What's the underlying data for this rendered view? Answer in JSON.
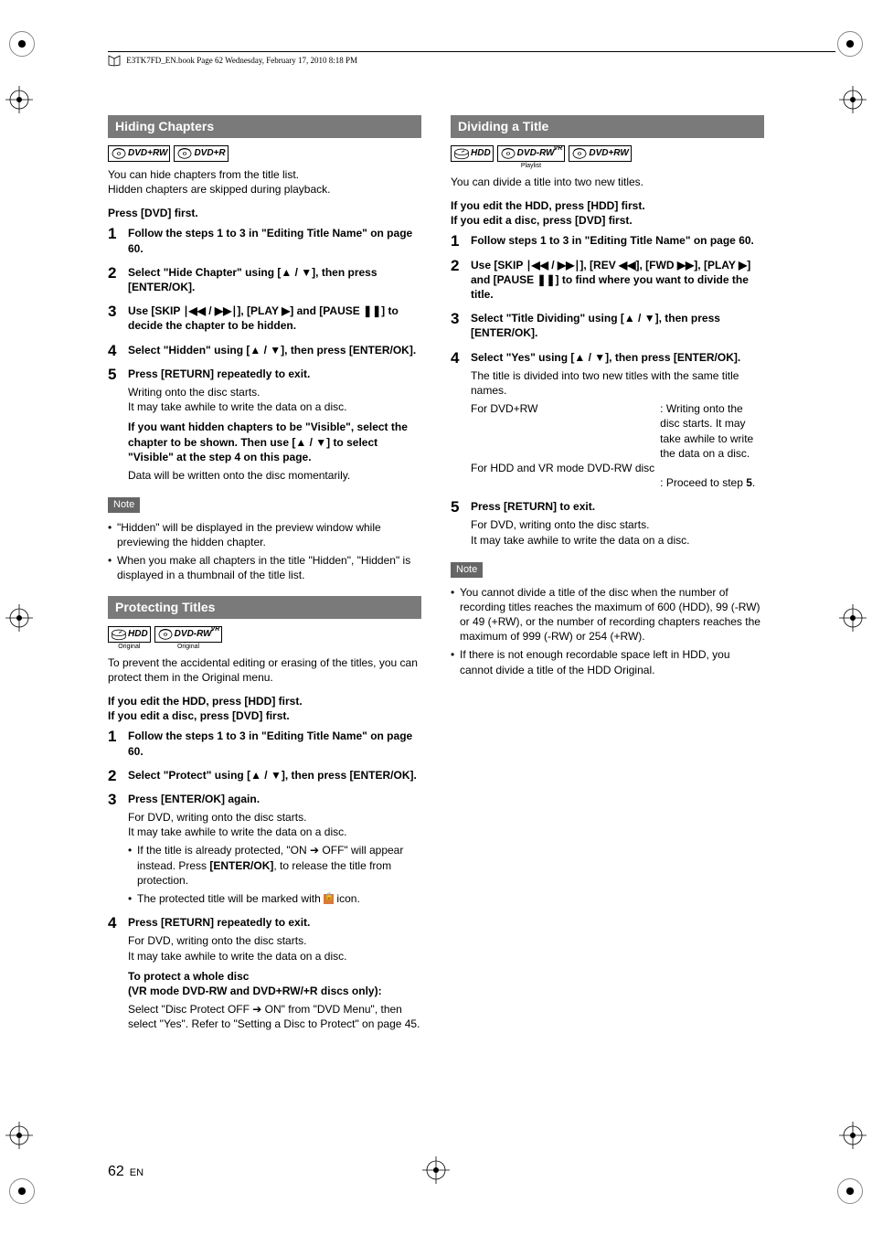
{
  "header_text": "E3TK7FD_EN.book  Page 62  Wednesday, February 17, 2010  8:18 PM",
  "page_number": "62",
  "page_lang": "EN",
  "symbols": {
    "up": "▲",
    "down": "▼",
    "play": "▶",
    "pause": "❚❚",
    "skip_prev": "∣◀◀",
    "skip_next": "▶▶∣",
    "rev": "◀◀",
    "fwd": "▶▶",
    "right_arrow": "➔"
  },
  "left": {
    "sec1": {
      "title": "Hiding Chapters",
      "discs": [
        {
          "type": "disc",
          "label": "DVD+RW"
        },
        {
          "type": "disc",
          "label": "DVD+R"
        }
      ],
      "intro1": "You can hide chapters from the title list.",
      "intro2": "Hidden chapters are skipped during playback.",
      "pre": "Press [DVD] first.",
      "steps": [
        {
          "main": "Follow the steps 1 to 3 in \"Editing Title Name\" on page 60."
        },
        {
          "main": "Select \"Hide Chapter\" using [▲ / ▼], then press [ENTER/OK]."
        },
        {
          "main": "Use [SKIP ∣◀◀ / ▶▶∣], [PLAY ▶] and [PAUSE ❚❚] to decide the chapter to be hidden."
        },
        {
          "main": "Select \"Hidden\" using [▲ / ▼], then press [ENTER/OK]."
        },
        {
          "main": "Press [RETURN] repeatedly to exit.",
          "sub": [
            "Writing onto the disc starts.",
            "It may take awhile to write the data on a disc."
          ],
          "subbold": "If you want hidden chapters to be \"Visible\", select the chapter to be shown. Then use [▲ / ▼] to select \"Visible\" at the step 4 on this page.",
          "subafter": "Data will be written onto the disc momentarily."
        }
      ],
      "note_label": "Note",
      "notes": [
        "\"Hidden\" will be displayed in the preview window while previewing the hidden chapter.",
        "When you make all chapters in the title \"Hidden\", \"Hidden\" is displayed in a thumbnail of the title list."
      ]
    },
    "sec2": {
      "title": "Protecting Titles",
      "discs": [
        {
          "type": "hdd",
          "label": "HDD",
          "sub": "Original"
        },
        {
          "type": "disc",
          "label": "DVD-RW",
          "sup": "VR",
          "sub": "Original"
        }
      ],
      "intro": "To prevent the accidental editing or erasing of the titles, you can protect them in the Original menu.",
      "pre1": "If you edit the HDD, press [HDD] first.",
      "pre2": "If you edit a disc, press [DVD] first.",
      "steps": [
        {
          "main": "Follow the steps 1 to 3 in \"Editing Title Name\" on page 60."
        },
        {
          "main": "Select \"Protect\" using [▲ / ▼], then press [ENTER/OK]."
        },
        {
          "main": "Press [ENTER/OK] again.",
          "sub": [
            "For DVD, writing onto the disc starts.",
            "It may take awhile to write the data on a disc."
          ],
          "bullets": [
            "If the title is already protected, \"ON ➔ OFF\" will appear instead. Press [ENTER/OK], to release the title from protection.",
            "The protected title will be marked with LOCK icon."
          ]
        },
        {
          "main": "Press [RETURN] repeatedly to exit.",
          "sub": [
            "For DVD, writing onto the disc starts.",
            "It may take awhile to write the data on a disc."
          ],
          "subbold": "To protect a whole disc\n(VR mode DVD-RW and DVD+RW/+R discs only):",
          "subafter": "Select \"Disc Protect OFF ➔ ON\" from \"DVD Menu\", then select \"Yes\". Refer to \"Setting a Disc to Protect\" on page 45."
        }
      ]
    }
  },
  "right": {
    "sec1": {
      "title": "Dividing a Title",
      "discs": [
        {
          "type": "hdd",
          "label": "HDD"
        },
        {
          "type": "disc",
          "label": "DVD-RW",
          "sup": "VR",
          "sub": "Playlist"
        },
        {
          "type": "disc",
          "label": "DVD+RW"
        }
      ],
      "intro": "You can divide a title into two new titles.",
      "pre1": "If you edit the HDD, press [HDD] first.",
      "pre2": "If you edit a disc, press [DVD] first.",
      "steps": [
        {
          "main": "Follow steps 1 to 3 in \"Editing Title Name\" on page 60."
        },
        {
          "main": "Use [SKIP ∣◀◀ / ▶▶∣], [REV ◀◀], [FWD ▶▶], [PLAY ▶] and [PAUSE ❚❚] to find where you want to divide the title."
        },
        {
          "main": "Select \"Title Dividing\" using [▲ / ▼], then press [ENTER/OK]."
        },
        {
          "main": "Select \"Yes\" using [▲ / ▼], then press [ENTER/OK].",
          "sub": [
            "The title is divided into two new titles with the same title names."
          ],
          "table": [
            [
              "For DVD+RW",
              ": Writing onto the disc starts. It may take awhile to write the data on a disc."
            ],
            [
              "For HDD and VR mode DVD-RW disc",
              ""
            ],
            [
              "",
              ": Proceed to step 5."
            ]
          ]
        },
        {
          "main": "Press [RETURN] to exit.",
          "sub": [
            "For DVD, writing onto the disc starts.",
            "It may take awhile to write the data on a disc."
          ]
        }
      ],
      "note_label": "Note",
      "notes": [
        "You cannot divide a title of the disc when the number of recording titles reaches the maximum of 600 (HDD), 99 (-RW) or 49 (+RW), or the number of recording chapters reaches the maximum of 999 (-RW) or 254 (+RW).",
        "If there is not enough recordable space left in HDD, you cannot divide a title of the HDD Original."
      ]
    }
  }
}
